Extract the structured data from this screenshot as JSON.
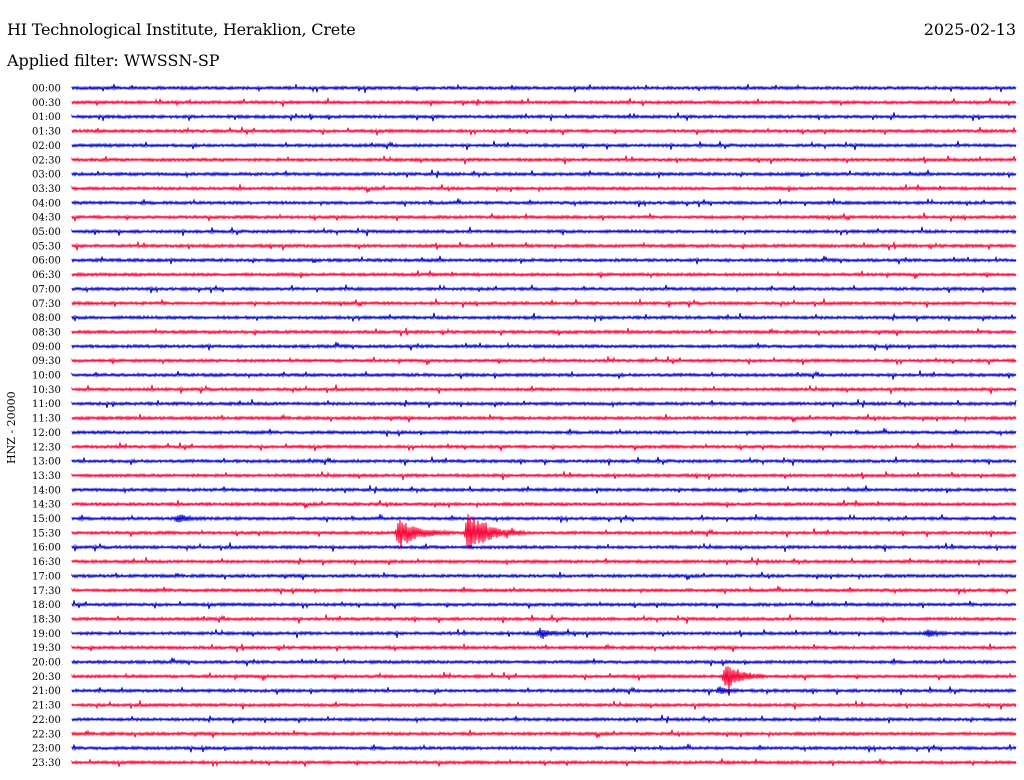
{
  "header": {
    "station": "HI Technological Institute, Heraklion, Crete",
    "date": "2025-02-13",
    "filter": "Applied filter: WWSSN-SP",
    "channel": "HNZ - 20000"
  },
  "chart_data": {
    "type": "seismogram",
    "trace_colors": [
      "#0000cc",
      "#ff0033"
    ],
    "x_range_minutes": [
      0,
      30
    ],
    "rows": [
      {
        "time": "00:00"
      },
      {
        "time": "00:30"
      },
      {
        "time": "01:00"
      },
      {
        "time": "01:30"
      },
      {
        "time": "02:00"
      },
      {
        "time": "02:30"
      },
      {
        "time": "03:00"
      },
      {
        "time": "03:30"
      },
      {
        "time": "04:00"
      },
      {
        "time": "04:30"
      },
      {
        "time": "05:00"
      },
      {
        "time": "05:30"
      },
      {
        "time": "06:00"
      },
      {
        "time": "06:30"
      },
      {
        "time": "07:00"
      },
      {
        "time": "07:30"
      },
      {
        "time": "08:00"
      },
      {
        "time": "08:30"
      },
      {
        "time": "09:00"
      },
      {
        "time": "09:30"
      },
      {
        "time": "10:00"
      },
      {
        "time": "10:30"
      },
      {
        "time": "11:00"
      },
      {
        "time": "11:30"
      },
      {
        "time": "12:00"
      },
      {
        "time": "12:30"
      },
      {
        "time": "13:00"
      },
      {
        "time": "13:30"
      },
      {
        "time": "14:00"
      },
      {
        "time": "14:30"
      },
      {
        "time": "15:00"
      },
      {
        "time": "15:30"
      },
      {
        "time": "16:00"
      },
      {
        "time": "16:30"
      },
      {
        "time": "17:00"
      },
      {
        "time": "17:30"
      },
      {
        "time": "18:00"
      },
      {
        "time": "18:30"
      },
      {
        "time": "19:00"
      },
      {
        "time": "19:30"
      },
      {
        "time": "20:00"
      },
      {
        "time": "20:30"
      },
      {
        "time": "21:00"
      },
      {
        "time": "21:30"
      },
      {
        "time": "22:00"
      },
      {
        "time": "22:30"
      },
      {
        "time": "23:00"
      },
      {
        "time": "23:30"
      }
    ],
    "events": [
      {
        "row": "15:30",
        "minute": 10.4,
        "amplitude": 14,
        "duration_min": 1.6
      },
      {
        "row": "15:30",
        "minute": 12.6,
        "amplitude": 20,
        "duration_min": 1.8
      },
      {
        "row": "20:30",
        "minute": 20.8,
        "amplitude": 16,
        "duration_min": 1.2
      },
      {
        "row": "19:00",
        "minute": 14.9,
        "amplitude": 5,
        "duration_min": 0.8
      },
      {
        "row": "19:00",
        "minute": 27.2,
        "amplitude": 4,
        "duration_min": 0.6
      },
      {
        "row": "15:00",
        "minute": 3.4,
        "amplitude": 4,
        "duration_min": 0.9
      },
      {
        "row": "21:00",
        "minute": 20.6,
        "amplitude": 4,
        "duration_min": 0.6
      }
    ]
  }
}
